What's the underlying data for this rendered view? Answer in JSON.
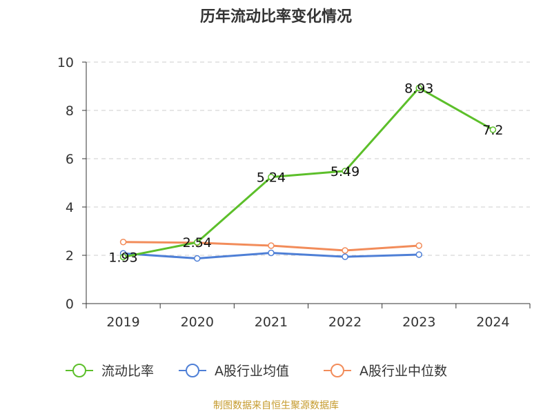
{
  "title": "历年流动比率变化情况",
  "footer": "制图数据来自恒生聚源数据库",
  "chart_data": {
    "type": "line",
    "categories": [
      "2019",
      "2020",
      "2021",
      "2022",
      "2023",
      "2024"
    ],
    "ylim": [
      0,
      10
    ],
    "yticks": [
      0,
      2,
      4,
      6,
      8,
      10
    ],
    "grid": true,
    "legend_position": "bottom",
    "series": [
      {
        "name": "流动比率",
        "color": "#5cbf2a",
        "values": [
          1.93,
          2.54,
          5.24,
          5.49,
          8.93,
          7.2
        ],
        "labels": [
          "1.93",
          "2.54",
          "5.24",
          "5.49",
          "8.93",
          "7.2"
        ]
      },
      {
        "name": "A股行业均值",
        "color": "#4e7fd6",
        "values": [
          2.08,
          1.87,
          2.1,
          1.94,
          2.03,
          null
        ]
      },
      {
        "name": "A股行业中位数",
        "color": "#f28c5a",
        "values": [
          2.55,
          2.52,
          2.4,
          2.2,
          2.4,
          null
        ]
      }
    ]
  }
}
